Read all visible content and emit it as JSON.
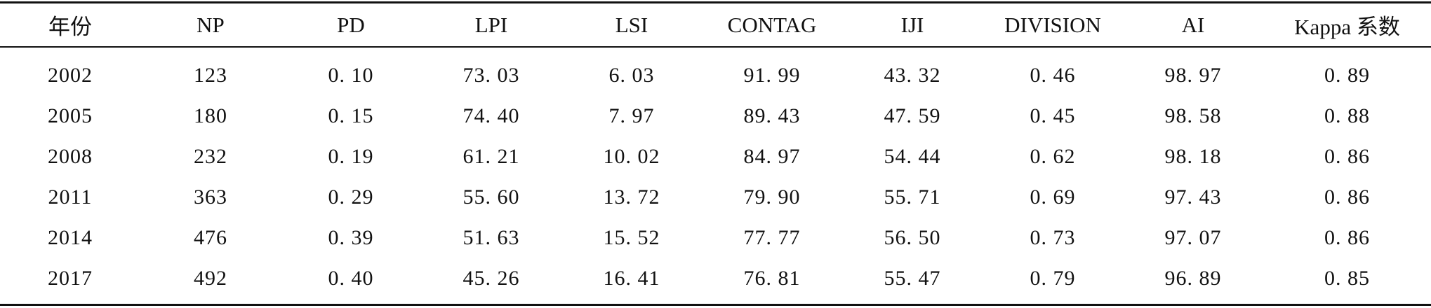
{
  "table": {
    "headers": [
      "年份",
      "NP",
      "PD",
      "LPI",
      "LSI",
      "CONTAG",
      "IJI",
      "DIVISION",
      "AI",
      "Kappa 系数"
    ],
    "rows": [
      [
        "2002",
        "123",
        "0. 10",
        "73. 03",
        "6. 03",
        "91. 99",
        "43. 32",
        "0. 46",
        "98. 97",
        "0. 89"
      ],
      [
        "2005",
        "180",
        "0. 15",
        "74. 40",
        "7. 97",
        "89. 43",
        "47. 59",
        "0. 45",
        "98. 58",
        "0. 88"
      ],
      [
        "2008",
        "232",
        "0. 19",
        "61. 21",
        "10. 02",
        "84. 97",
        "54. 44",
        "0. 62",
        "98. 18",
        "0. 86"
      ],
      [
        "2011",
        "363",
        "0. 29",
        "55. 60",
        "13. 72",
        "79. 90",
        "55. 71",
        "0. 69",
        "97. 43",
        "0. 86"
      ],
      [
        "2014",
        "476",
        "0. 39",
        "51. 63",
        "15. 52",
        "77. 77",
        "56. 50",
        "0. 73",
        "97. 07",
        "0. 86"
      ],
      [
        "2017",
        "492",
        "0. 40",
        "45. 26",
        "16. 41",
        "76. 81",
        "55. 47",
        "0. 79",
        "96. 89",
        "0. 85"
      ]
    ]
  }
}
